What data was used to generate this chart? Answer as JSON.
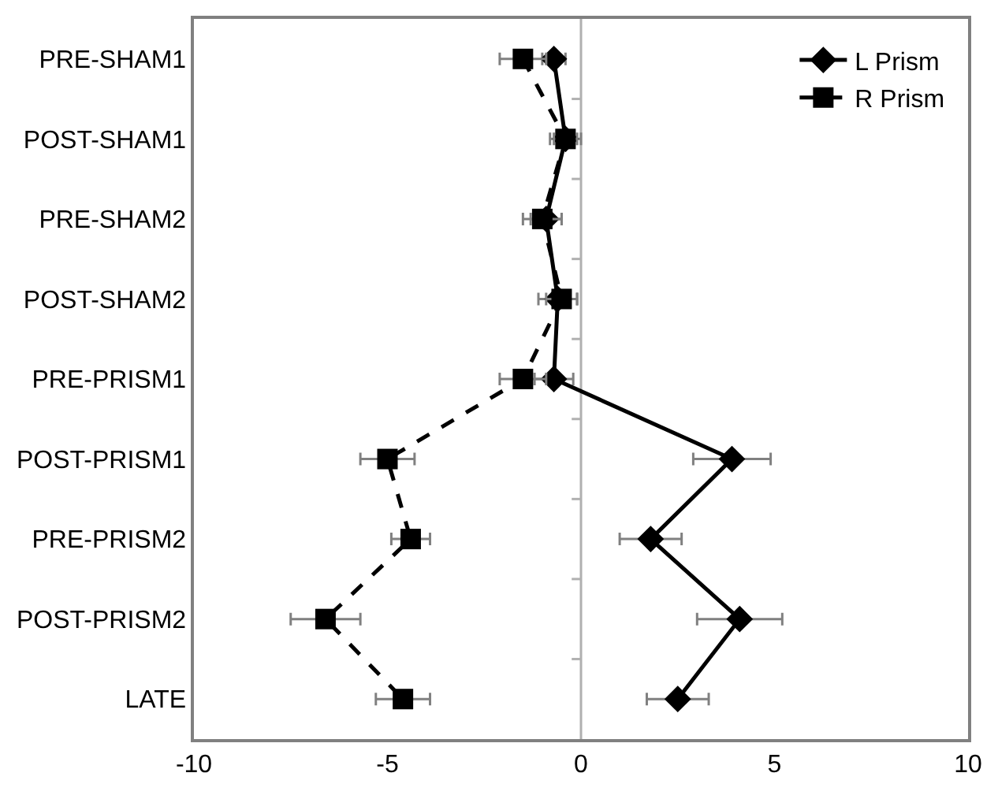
{
  "chart_data": {
    "type": "line",
    "orientation": "horizontal",
    "categories": [
      "PRE-SHAM1",
      "POST-SHAM1",
      "PRE-SHAM2",
      "POST-SHAM2",
      "PRE-PRISM1",
      "POST-PRISM1",
      "PRE-PRISM2",
      "POST-PRISM2",
      "LATE"
    ],
    "series": [
      {
        "name": "L Prism",
        "color": "#000000",
        "marker": "diamond",
        "line_style": "solid",
        "values": [
          -0.7,
          -0.4,
          -0.9,
          -0.6,
          -0.7,
          3.9,
          1.8,
          4.1,
          2.5
        ],
        "errors": [
          0.3,
          0.4,
          0.4,
          0.5,
          0.5,
          1.0,
          0.8,
          1.1,
          0.8
        ]
      },
      {
        "name": "R Prism",
        "color": "#000000",
        "marker": "square",
        "line_style": "dashed",
        "values": [
          -1.5,
          -0.4,
          -1.0,
          -0.5,
          -1.5,
          -5.0,
          -4.4,
          -6.6,
          -4.6
        ],
        "errors": [
          0.6,
          0.3,
          0.5,
          0.4,
          0.6,
          0.7,
          0.5,
          0.9,
          0.7
        ]
      }
    ],
    "xlim": [
      -10,
      10
    ],
    "xticks": [
      -10,
      -5,
      0,
      5,
      10
    ],
    "grid": false,
    "ref_lines": [
      {
        "axis": "x",
        "value": 0,
        "color": "#b0b0b0"
      }
    ],
    "legend": "top right"
  }
}
